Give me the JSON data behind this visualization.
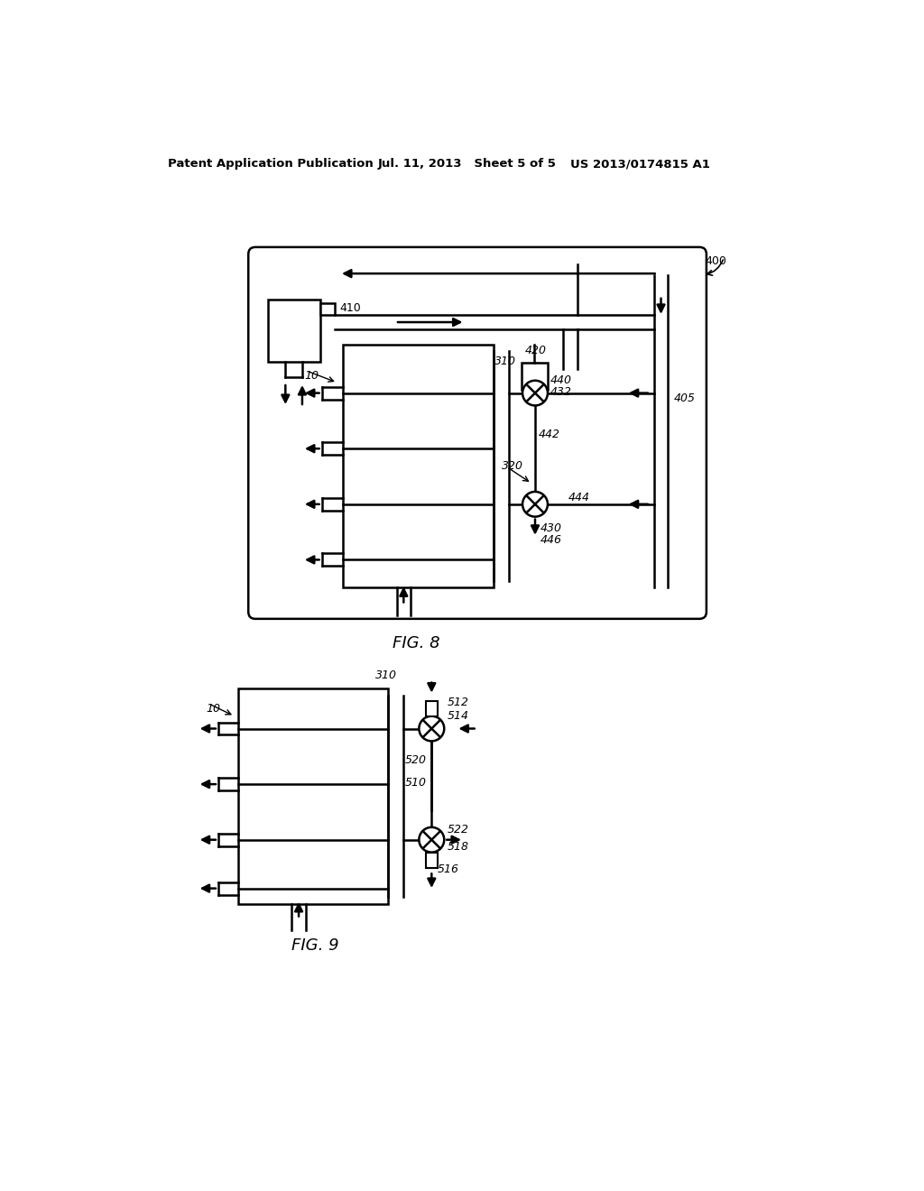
{
  "background_color": "#ffffff",
  "header_left": "Patent Application Publication",
  "header_mid": "Jul. 11, 2013   Sheet 5 of 5",
  "header_right": "US 2013/0174815 A1",
  "fig8_label": "FIG. 8",
  "fig9_label": "FIG. 9",
  "line_color": "#000000",
  "line_width": 1.5,
  "text_color": "#000000"
}
